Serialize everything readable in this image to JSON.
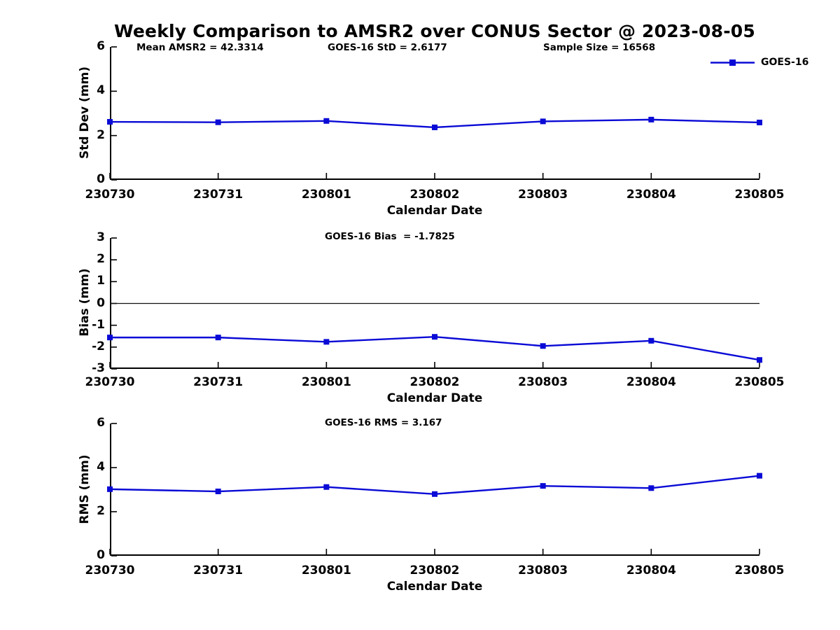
{
  "title": "Weekly Comparison to AMSR2 over CONUS Sector @ 2023-08-05",
  "legend": {
    "label": "GOES-16",
    "color": "#0a0ad6",
    "position": "upper right"
  },
  "categories": [
    "230730",
    "230731",
    "230801",
    "230802",
    "230803",
    "230804",
    "230805"
  ],
  "chart_data": [
    {
      "type": "line",
      "ylabel": "Std Dev (mm)",
      "xlabel": "Calendar Date",
      "x": [
        "230730",
        "230731",
        "230801",
        "230802",
        "230803",
        "230804",
        "230805"
      ],
      "series": [
        {
          "name": "GOES-16",
          "values": [
            2.62,
            2.6,
            2.66,
            2.37,
            2.64,
            2.72,
            2.59
          ]
        }
      ],
      "ylim": [
        0,
        6
      ],
      "yticks": [
        0,
        2,
        4,
        6
      ],
      "grid": false,
      "zero_line": false,
      "annotations": [
        "Mean AMSR2 = 42.3314",
        "GOES-16 StD = 2.6177",
        "Sample Size = 16568"
      ]
    },
    {
      "type": "line",
      "ylabel": "Bias (mm)",
      "xlabel": "Calendar Date",
      "x": [
        "230730",
        "230731",
        "230801",
        "230802",
        "230803",
        "230804",
        "230805"
      ],
      "series": [
        {
          "name": "GOES-16",
          "values": [
            -1.56,
            -1.56,
            -1.76,
            -1.53,
            -1.95,
            -1.71,
            -2.59
          ]
        }
      ],
      "ylim": [
        -3,
        3
      ],
      "yticks": [
        3,
        2,
        1,
        0,
        -1,
        -2,
        -3
      ],
      "grid": false,
      "zero_line": true,
      "annotations": [
        "GOES-16 Bias  = -1.7825"
      ]
    },
    {
      "type": "line",
      "ylabel": "RMS (mm)",
      "xlabel": "Calendar Date",
      "x": [
        "230730",
        "230731",
        "230801",
        "230802",
        "230803",
        "230804",
        "230805"
      ],
      "series": [
        {
          "name": "GOES-16",
          "values": [
            3.02,
            2.92,
            3.12,
            2.8,
            3.17,
            3.07,
            3.63
          ]
        }
      ],
      "ylim": [
        0,
        6
      ],
      "yticks": [
        0,
        2,
        4,
        6
      ],
      "grid": false,
      "zero_line": false,
      "annotations": [
        "GOES-16 RMS = 3.167"
      ]
    }
  ]
}
